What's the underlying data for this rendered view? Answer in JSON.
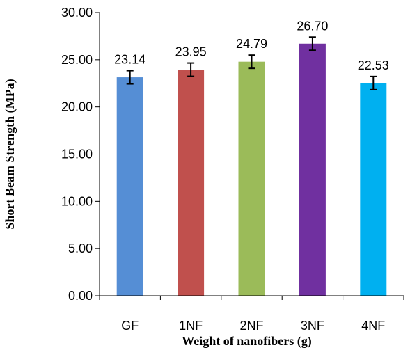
{
  "chart_data": {
    "type": "bar",
    "title": "",
    "xlabel": "Weight of nanofibers (g)",
    "ylabel": "Short Beam Strength  (MPa)",
    "categories": [
      "GF",
      "1NF",
      "2NF",
      "3NF",
      "4NF"
    ],
    "values": [
      23.14,
      23.95,
      24.79,
      26.7,
      22.53
    ],
    "value_labels": [
      "23.14",
      "23.95",
      "24.79",
      "26.70",
      "22.53"
    ],
    "error": [
      0.7,
      0.7,
      0.7,
      0.7,
      0.7
    ],
    "colors": [
      "#558ED5",
      "#C0504D",
      "#9BBB59",
      "#7030A0",
      "#00B0F0"
    ],
    "ylim": [
      0,
      30
    ],
    "yticks": [
      "0.00",
      "5.00",
      "10.00",
      "15.00",
      "20.00",
      "25.00",
      "30.00"
    ],
    "grid": false,
    "legend": "none"
  }
}
